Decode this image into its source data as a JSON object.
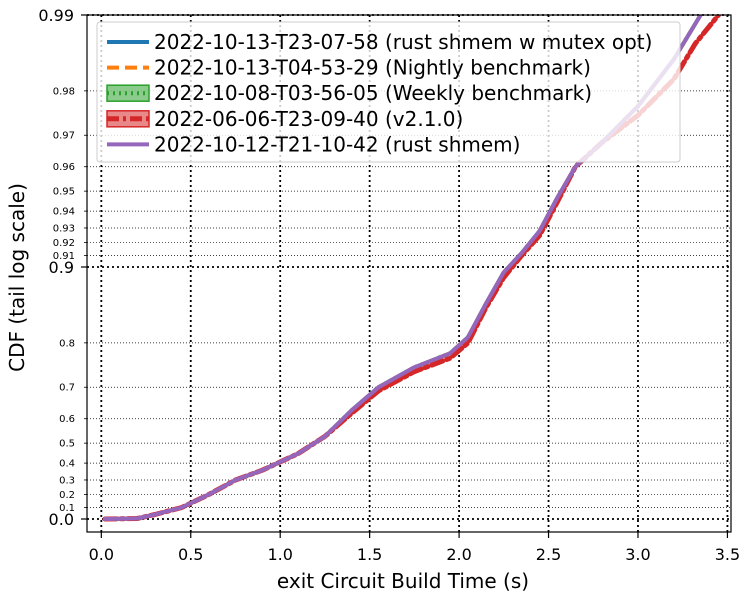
{
  "chart_data": {
    "type": "line",
    "title": "",
    "xlabel": "exit Circuit Build Time (s)",
    "ylabel": "CDF (tail log scale)",
    "xlim": [
      -0.08,
      3.52
    ],
    "x_ticks": [
      {
        "value": 0.0,
        "label": "0.0"
      },
      {
        "value": 0.5,
        "label": "0.5"
      },
      {
        "value": 1.0,
        "label": "1.0"
      },
      {
        "value": 1.5,
        "label": "1.5"
      },
      {
        "value": 2.0,
        "label": "2.0"
      },
      {
        "value": 2.5,
        "label": "2.5"
      },
      {
        "value": 3.0,
        "label": "3.0"
      },
      {
        "value": 3.5,
        "label": "3.5"
      }
    ],
    "y_scale": "tail log",
    "y_major_ticks": [
      {
        "value": 0.0,
        "label": "0.0"
      },
      {
        "value": 0.9,
        "label": "0.9"
      },
      {
        "value": 0.99,
        "label": "0.99"
      }
    ],
    "y_minor_ticks": [
      {
        "value": 0.1,
        "label": "0.1"
      },
      {
        "value": 0.2,
        "label": "0.2"
      },
      {
        "value": 0.3,
        "label": "0.3"
      },
      {
        "value": 0.4,
        "label": "0.4"
      },
      {
        "value": 0.5,
        "label": "0.5"
      },
      {
        "value": 0.6,
        "label": "0.6"
      },
      {
        "value": 0.7,
        "label": "0.7"
      },
      {
        "value": 0.8,
        "label": "0.8"
      },
      {
        "value": 0.91,
        "label": "0.91"
      },
      {
        "value": 0.92,
        "label": "0.92"
      },
      {
        "value": 0.93,
        "label": "0.93"
      },
      {
        "value": 0.94,
        "label": "0.94"
      },
      {
        "value": 0.95,
        "label": "0.95"
      },
      {
        "value": 0.96,
        "label": "0.96"
      },
      {
        "value": 0.97,
        "label": "0.97"
      },
      {
        "value": 0.98,
        "label": "0.98"
      }
    ],
    "grid": true,
    "legend_position": "top-left",
    "series": [
      {
        "name": "2022-10-13-T23-07-58 (rust shmem w mutex opt)",
        "color": "#1f77b4",
        "style": "solid",
        "legend_marker": "line",
        "points": [
          [
            0.02,
            0.0
          ],
          [
            0.2,
            0.005
          ],
          [
            0.3,
            0.04
          ],
          [
            0.45,
            0.1
          ],
          [
            0.6,
            0.2
          ],
          [
            0.75,
            0.3
          ],
          [
            0.9,
            0.36
          ],
          [
            1.1,
            0.45
          ],
          [
            1.25,
            0.53
          ],
          [
            1.4,
            0.63
          ],
          [
            1.55,
            0.7
          ],
          [
            1.75,
            0.75
          ],
          [
            1.95,
            0.78
          ],
          [
            2.05,
            0.81
          ],
          [
            2.15,
            0.86
          ],
          [
            2.25,
            0.895
          ],
          [
            2.35,
            0.912
          ],
          [
            2.45,
            0.928
          ],
          [
            2.55,
            0.947
          ],
          [
            2.65,
            0.96
          ],
          [
            2.8,
            0.968
          ],
          [
            3.0,
            0.977
          ],
          [
            3.2,
            0.985
          ],
          [
            3.35,
            0.99
          ]
        ]
      },
      {
        "name": "2022-10-13-T04-53-29 (Nightly benchmark)",
        "color": "#ff7f0e",
        "style": "dashed",
        "legend_marker": "line",
        "points": [
          [
            0.02,
            0.0
          ],
          [
            0.2,
            0.005
          ],
          [
            0.3,
            0.04
          ],
          [
            0.45,
            0.1
          ],
          [
            0.6,
            0.2
          ],
          [
            0.75,
            0.3
          ],
          [
            0.9,
            0.36
          ],
          [
            1.1,
            0.45
          ],
          [
            1.25,
            0.53
          ],
          [
            1.4,
            0.63
          ],
          [
            1.55,
            0.7
          ],
          [
            1.75,
            0.75
          ],
          [
            1.95,
            0.78
          ],
          [
            2.05,
            0.81
          ],
          [
            2.15,
            0.86
          ],
          [
            2.25,
            0.895
          ],
          [
            2.35,
            0.912
          ],
          [
            2.45,
            0.928
          ],
          [
            2.55,
            0.947
          ],
          [
            2.65,
            0.96
          ],
          [
            2.8,
            0.968
          ],
          [
            3.0,
            0.977
          ],
          [
            3.2,
            0.985
          ],
          [
            3.35,
            0.99
          ]
        ]
      },
      {
        "name": "2022-10-08-T03-56-05 (Weekly benchmark)",
        "color": "#2ca02c",
        "style": "dotted",
        "legend_marker": "band",
        "points": [
          [
            0.02,
            0.0
          ],
          [
            0.2,
            0.005
          ],
          [
            0.3,
            0.04
          ],
          [
            0.45,
            0.1
          ],
          [
            0.6,
            0.2
          ],
          [
            0.75,
            0.3
          ],
          [
            0.9,
            0.36
          ],
          [
            1.1,
            0.45
          ],
          [
            1.25,
            0.53
          ],
          [
            1.4,
            0.63
          ],
          [
            1.55,
            0.7
          ],
          [
            1.75,
            0.75
          ],
          [
            1.95,
            0.78
          ],
          [
            2.05,
            0.81
          ],
          [
            2.15,
            0.86
          ],
          [
            2.25,
            0.895
          ],
          [
            2.35,
            0.912
          ],
          [
            2.45,
            0.928
          ],
          [
            2.55,
            0.947
          ],
          [
            2.65,
            0.96
          ],
          [
            2.8,
            0.968
          ],
          [
            3.0,
            0.977
          ],
          [
            3.2,
            0.985
          ],
          [
            3.35,
            0.99
          ]
        ]
      },
      {
        "name": "2022-06-06-T23-09-40 (v2.1.0)",
        "color": "#d62728",
        "style": "dashdot",
        "legend_marker": "band",
        "points": [
          [
            0.02,
            0.0
          ],
          [
            0.2,
            0.005
          ],
          [
            0.3,
            0.04
          ],
          [
            0.45,
            0.1
          ],
          [
            0.6,
            0.2
          ],
          [
            0.75,
            0.3
          ],
          [
            0.9,
            0.36
          ],
          [
            1.1,
            0.45
          ],
          [
            1.25,
            0.53
          ],
          [
            1.4,
            0.62
          ],
          [
            1.55,
            0.69
          ],
          [
            1.75,
            0.74
          ],
          [
            1.95,
            0.77
          ],
          [
            2.05,
            0.8
          ],
          [
            2.15,
            0.855
          ],
          [
            2.25,
            0.89
          ],
          [
            2.35,
            0.91
          ],
          [
            2.45,
            0.925
          ],
          [
            2.55,
            0.945
          ],
          [
            2.65,
            0.96
          ],
          [
            2.8,
            0.968
          ],
          [
            3.0,
            0.975
          ],
          [
            3.2,
            0.982
          ],
          [
            3.32,
            0.987
          ],
          [
            3.45,
            0.99
          ]
        ]
      },
      {
        "name": "2022-10-12-T21-10-42 (rust shmem)",
        "color": "#9467bd",
        "style": "solid",
        "legend_marker": "line",
        "points": [
          [
            0.02,
            0.0
          ],
          [
            0.2,
            0.005
          ],
          [
            0.3,
            0.04
          ],
          [
            0.45,
            0.1
          ],
          [
            0.6,
            0.2
          ],
          [
            0.75,
            0.3
          ],
          [
            0.9,
            0.36
          ],
          [
            1.1,
            0.45
          ],
          [
            1.25,
            0.53
          ],
          [
            1.4,
            0.63
          ],
          [
            1.55,
            0.7
          ],
          [
            1.75,
            0.75
          ],
          [
            1.95,
            0.78
          ],
          [
            2.05,
            0.81
          ],
          [
            2.15,
            0.86
          ],
          [
            2.25,
            0.895
          ],
          [
            2.35,
            0.912
          ],
          [
            2.45,
            0.928
          ],
          [
            2.55,
            0.947
          ],
          [
            2.65,
            0.96
          ],
          [
            2.8,
            0.968
          ],
          [
            3.0,
            0.977
          ],
          [
            3.2,
            0.985
          ],
          [
            3.35,
            0.99
          ]
        ]
      }
    ]
  }
}
